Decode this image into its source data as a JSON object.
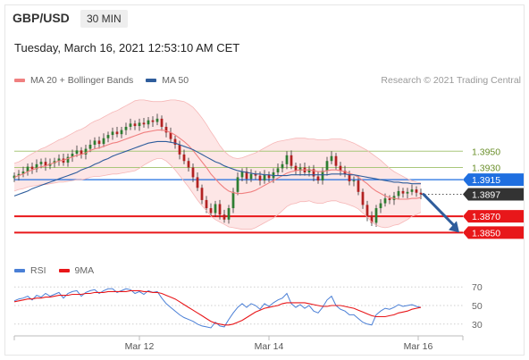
{
  "header": {
    "symbol": "GBP/USD",
    "interval": "30 MIN",
    "datetime": "Tuesday, March 16, 2021 12:53:10 AM CET",
    "credit": "Research © 2021 Trading Central"
  },
  "colors": {
    "bollinger": "#f08080",
    "ma50": "#2f5d9c",
    "resistance": "#a8c77a",
    "current": "#333333",
    "pivot": "#1f6fe0",
    "support": "#e8171a",
    "rsi": "#4a7fd6",
    "rsi_ma": "#e8171a",
    "candle_up": "#2e7d32",
    "candle_down": "#b22222"
  },
  "chart_data": [
    {
      "type": "candlestick",
      "legend": [
        {
          "name": "MA 20 + Bollinger Bands",
          "color": "#f08080"
        },
        {
          "name": "MA 50",
          "color": "#2f5d9c"
        }
      ],
      "ylim": [
        1.3835,
        1.4025
      ],
      "x_ticks": [
        "Mar 12",
        "Mar 14",
        "Mar 16"
      ],
      "levels": [
        {
          "label": "1.3950",
          "value": 1.395,
          "kind": "resistance"
        },
        {
          "label": "1.3930",
          "value": 1.393,
          "kind": "resistance"
        },
        {
          "label": "1.3915",
          "value": 1.3915,
          "kind": "pivot"
        },
        {
          "label": "1.3897",
          "value": 1.3897,
          "kind": "current"
        },
        {
          "label": "1.3870",
          "value": 1.387,
          "kind": "support"
        },
        {
          "label": "1.3850",
          "value": 1.385,
          "kind": "support"
        }
      ],
      "close": [
        1.392,
        1.3922,
        1.3925,
        1.3931,
        1.3928,
        1.3934,
        1.3937,
        1.3932,
        1.3935,
        1.3938,
        1.3941,
        1.3936,
        1.3943,
        1.3947,
        1.3951,
        1.3946,
        1.3953,
        1.3958,
        1.3963,
        1.3959,
        1.3966,
        1.397,
        1.3974,
        1.3971,
        1.3976,
        1.398,
        1.3984,
        1.3981,
        1.3985,
        1.3983,
        1.3988,
        1.3986,
        1.399,
        1.398,
        1.3973,
        1.3965,
        1.3958,
        1.3946,
        1.3938,
        1.393,
        1.3918,
        1.3905,
        1.389,
        1.388,
        1.3874,
        1.3885,
        1.3872,
        1.3866,
        1.388,
        1.39,
        1.3918,
        1.3925,
        1.3916,
        1.3922,
        1.392,
        1.3914,
        1.3921,
        1.3917,
        1.3924,
        1.3929,
        1.3934,
        1.3945,
        1.3932,
        1.3926,
        1.393,
        1.3924,
        1.3928,
        1.3919,
        1.3914,
        1.3926,
        1.3938,
        1.3944,
        1.3932,
        1.3926,
        1.3922,
        1.3913,
        1.3914,
        1.39,
        1.3884,
        1.387,
        1.3862,
        1.388,
        1.3886,
        1.3892,
        1.389,
        1.3895,
        1.3901,
        1.3898,
        1.39,
        1.3903,
        1.3899,
        1.3897
      ],
      "ma20": [
        1.3918,
        1.392,
        1.3922,
        1.3925,
        1.3927,
        1.3929,
        1.3931,
        1.3932,
        1.3934,
        1.3936,
        1.3938,
        1.3939,
        1.3941,
        1.3943,
        1.3945,
        1.3946,
        1.3948,
        1.3951,
        1.3953,
        1.3954,
        1.3956,
        1.3958,
        1.396,
        1.3961,
        1.3963,
        1.3965,
        1.3967,
        1.3969,
        1.3971,
        1.3973,
        1.3974,
        1.3975,
        1.3976,
        1.3976,
        1.3975,
        1.3973,
        1.397,
        1.3966,
        1.3962,
        1.3957,
        1.3951,
        1.3944,
        1.3937,
        1.393,
        1.3922,
        1.3916,
        1.391,
        1.3905,
        1.3901,
        1.3899,
        1.3898,
        1.3898,
        1.3899,
        1.39,
        1.3902,
        1.3905,
        1.3908,
        1.3911,
        1.3914,
        1.3917,
        1.392,
        1.3923,
        1.3925,
        1.3926,
        1.3927,
        1.3927,
        1.3927,
        1.3926,
        1.3925,
        1.3925,
        1.3926,
        1.3927,
        1.3927,
        1.3926,
        1.3925,
        1.3923,
        1.3921,
        1.3918,
        1.3914,
        1.391,
        1.3905,
        1.3901,
        1.3898,
        1.3895,
        1.3893,
        1.3892,
        1.3891,
        1.3891,
        1.3891,
        1.3892,
        1.3892,
        1.3893
      ],
      "bb_upper": [
        1.3935,
        1.3937,
        1.394,
        1.3944,
        1.3947,
        1.395,
        1.3953,
        1.3955,
        1.3958,
        1.3961,
        1.3964,
        1.3966,
        1.3969,
        1.3972,
        1.3975,
        1.3977,
        1.398,
        1.3984,
        1.3987,
        1.3989,
        1.3992,
        1.3995,
        1.3998,
        1.4,
        1.4003,
        1.4006,
        1.4009,
        1.4012,
        1.4013,
        1.4013,
        1.4012,
        1.4011,
        1.4011,
        1.4011,
        1.4012,
        1.4013,
        1.4013,
        1.4012,
        1.4011,
        1.4008,
        1.4004,
        1.3998,
        1.3991,
        1.3983,
        1.3974,
        1.3966,
        1.3957,
        1.395,
        1.3945,
        1.3942,
        1.3941,
        1.3942,
        1.3944,
        1.3946,
        1.3948,
        1.3951,
        1.3954,
        1.3957,
        1.396,
        1.3962,
        1.3963,
        1.3964,
        1.3965,
        1.3966,
        1.3966,
        1.3966,
        1.3965,
        1.3965,
        1.3964,
        1.3964,
        1.3964,
        1.3965,
        1.3965,
        1.3965,
        1.3964,
        1.3962,
        1.396,
        1.3957,
        1.3954,
        1.3951,
        1.3947,
        1.3943,
        1.3939,
        1.3934,
        1.3929,
        1.3925,
        1.3922,
        1.3919,
        1.3916,
        1.3914,
        1.3912,
        1.3911
      ],
      "bb_lower": [
        1.3901,
        1.3903,
        1.3904,
        1.3906,
        1.3907,
        1.3908,
        1.3909,
        1.3909,
        1.391,
        1.3911,
        1.3912,
        1.3912,
        1.3913,
        1.3914,
        1.3915,
        1.3915,
        1.3916,
        1.3918,
        1.3919,
        1.3919,
        1.392,
        1.3921,
        1.3922,
        1.3922,
        1.3923,
        1.3924,
        1.3925,
        1.3926,
        1.3929,
        1.3933,
        1.3936,
        1.3939,
        1.3941,
        1.3941,
        1.3938,
        1.3933,
        1.3927,
        1.392,
        1.3913,
        1.3906,
        1.3898,
        1.389,
        1.3883,
        1.3877,
        1.387,
        1.3866,
        1.3863,
        1.386,
        1.3857,
        1.3856,
        1.3855,
        1.3854,
        1.3854,
        1.3854,
        1.3856,
        1.3859,
        1.3862,
        1.3865,
        1.3868,
        1.3872,
        1.3877,
        1.3882,
        1.3885,
        1.3886,
        1.3888,
        1.3888,
        1.3889,
        1.3887,
        1.3886,
        1.3886,
        1.3888,
        1.3889,
        1.3889,
        1.3887,
        1.3886,
        1.3884,
        1.3882,
        1.3879,
        1.3874,
        1.3869,
        1.3863,
        1.3859,
        1.3857,
        1.3856,
        1.3857,
        1.3859,
        1.386,
        1.3863,
        1.3866,
        1.387,
        1.3872,
        1.3875
      ],
      "ma50": [
        1.3895,
        1.3897,
        1.3899,
        1.3901,
        1.3904,
        1.3906,
        1.3908,
        1.391,
        1.3912,
        1.3914,
        1.3916,
        1.3918,
        1.392,
        1.3922,
        1.3924,
        1.3927,
        1.3929,
        1.3931,
        1.3934,
        1.3936,
        1.3939,
        1.3941,
        1.3944,
        1.3946,
        1.3948,
        1.395,
        1.3952,
        1.3954,
        1.3956,
        1.3958,
        1.396,
        1.3961,
        1.3962,
        1.3962,
        1.3962,
        1.3961,
        1.396,
        1.3958,
        1.3956,
        1.3954,
        1.3952,
        1.3949,
        1.3946,
        1.3943,
        1.394,
        1.3937,
        1.3935,
        1.3932,
        1.393,
        1.3928,
        1.3926,
        1.3925,
        1.3924,
        1.3923,
        1.3922,
        1.3922,
        1.3921,
        1.3921,
        1.392,
        1.392,
        1.392,
        1.392,
        1.3921,
        1.3921,
        1.3921,
        1.3921,
        1.3921,
        1.3921,
        1.3921,
        1.3921,
        1.3921,
        1.3922,
        1.3922,
        1.3922,
        1.3922,
        1.3921,
        1.3921,
        1.392,
        1.3919,
        1.3918,
        1.3917,
        1.3916,
        1.3915,
        1.3914,
        1.3913,
        1.3912,
        1.3912,
        1.3911,
        1.3911,
        1.391,
        1.391,
        1.391
      ],
      "projection": [
        1.3897,
        1.385
      ]
    },
    {
      "type": "line",
      "legend": [
        {
          "name": "RSI",
          "color": "#4a7fd6"
        },
        {
          "name": "9MA",
          "color": "#e8171a"
        }
      ],
      "ylim": [
        25,
        75
      ],
      "y_ticks": [
        "70",
        "50",
        "30"
      ],
      "rsi": [
        55,
        57,
        58,
        60,
        56,
        61,
        59,
        63,
        60,
        62,
        64,
        58,
        63,
        65,
        66,
        60,
        64,
        66,
        67,
        63,
        66,
        68,
        68,
        64,
        66,
        68,
        67,
        63,
        65,
        62,
        66,
        64,
        65,
        58,
        52,
        48,
        44,
        40,
        37,
        35,
        33,
        30,
        28,
        27,
        26,
        32,
        28,
        27,
        35,
        42,
        48,
        52,
        48,
        52,
        50,
        46,
        52,
        49,
        53,
        56,
        58,
        63,
        52,
        48,
        51,
        47,
        50,
        44,
        42,
        48,
        56,
        60,
        50,
        46,
        44,
        40,
        40,
        36,
        32,
        30,
        29,
        40,
        44,
        47,
        46,
        48,
        51,
        49,
        50,
        51,
        49,
        48
      ],
      "ma9": [
        54,
        55,
        56,
        57,
        57,
        58,
        58,
        59,
        59,
        60,
        61,
        61,
        61,
        62,
        62,
        62,
        63,
        63,
        64,
        64,
        64,
        65,
        65,
        65,
        65,
        65,
        66,
        66,
        66,
        65,
        65,
        64,
        64,
        63,
        61,
        59,
        57,
        54,
        51,
        48,
        45,
        42,
        39,
        36,
        33,
        31,
        30,
        29,
        29,
        30,
        32,
        34,
        37,
        40,
        43,
        45,
        47,
        48,
        49,
        50,
        52,
        53,
        53,
        53,
        53,
        53,
        52,
        51,
        50,
        49,
        49,
        50,
        50,
        50,
        49,
        48,
        47,
        45,
        43,
        41,
        39,
        38,
        38,
        38,
        39,
        40,
        42,
        43,
        44,
        46,
        47,
        48
      ]
    }
  ]
}
